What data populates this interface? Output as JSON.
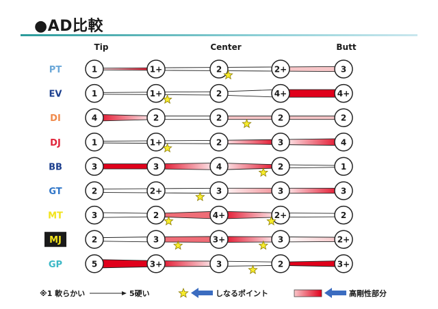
{
  "title": "●AD比較",
  "columns": {
    "tip": "Tip",
    "center": "Center",
    "butt": "Butt"
  },
  "rows": [
    {
      "name": "PT",
      "name_color": "#6aa7d8",
      "badge": false,
      "values": [
        "1",
        "1+",
        "2",
        "2+",
        "3"
      ],
      "stars": [
        2.15
      ],
      "segments": [
        {
          "from": 0,
          "to": 3,
          "style": "fade-dark"
        },
        {
          "from": 3,
          "to": 4,
          "style": "pale"
        }
      ]
    },
    {
      "name": "EV",
      "name_color": "#1c3f8e",
      "badge": false,
      "values": [
        "1",
        "1+",
        "2",
        "4+",
        "4+"
      ],
      "stars": [
        1.18
      ],
      "segments": [
        {
          "from": 3,
          "to": 4,
          "style": "dark"
        }
      ]
    },
    {
      "name": "DI",
      "name_color": "#f08a4b",
      "badge": false,
      "values": [
        "4",
        "2",
        "2",
        "2",
        "2"
      ],
      "stars": [
        2.45
      ],
      "segments": [
        {
          "from": 0,
          "to": 1,
          "style": "dark-fade"
        },
        {
          "from": 1,
          "to": 2,
          "style": "white"
        },
        {
          "from": 2,
          "to": 3,
          "style": "pale"
        },
        {
          "from": 3,
          "to": 4,
          "style": "pale"
        }
      ]
    },
    {
      "name": "DJ",
      "name_color": "#e0243a",
      "badge": false,
      "values": [
        "1",
        "1+",
        "2",
        "3",
        "4"
      ],
      "stars": [
        1.18
      ],
      "segments": [
        {
          "from": 1,
          "to": 2,
          "style": "white"
        },
        {
          "from": 2,
          "to": 3,
          "style": "fade-dark"
        },
        {
          "from": 3,
          "to": 4,
          "style": "fade-dark"
        }
      ]
    },
    {
      "name": "BB",
      "name_color": "#1c3f8e",
      "badge": false,
      "values": [
        "3",
        "3",
        "4",
        "2",
        "1"
      ],
      "stars": [
        2.72
      ],
      "segments": [
        {
          "from": 0,
          "to": 1,
          "style": "dark"
        },
        {
          "from": 1,
          "to": 2,
          "style": "dark-fade"
        },
        {
          "from": 2,
          "to": 3,
          "style": "fade-dark"
        },
        {
          "from": 3,
          "to": 4,
          "style": "white"
        }
      ]
    },
    {
      "name": "GT",
      "name_color": "#2f75c8",
      "badge": false,
      "values": [
        "2",
        "2+",
        "3",
        "3",
        "3"
      ],
      "stars": [
        1.7
      ],
      "segments": [
        {
          "from": 1,
          "to": 2,
          "style": "white"
        },
        {
          "from": 2,
          "to": 3,
          "style": "pale-mid"
        },
        {
          "from": 3,
          "to": 4,
          "style": "fade-dark"
        }
      ]
    },
    {
      "name": "MT",
      "name_color": "#f2e31b",
      "badge": false,
      "values": [
        "3",
        "2",
        "4+",
        "2+",
        "2"
      ],
      "stars": [
        1.2,
        2.85
      ],
      "segments": [
        {
          "from": 1,
          "to": 2,
          "style": "mid"
        },
        {
          "from": 2,
          "to": 3,
          "style": "dark-fade"
        }
      ]
    },
    {
      "name": "MJ",
      "name_color": "#f2e31b",
      "badge": true,
      "badge_color": "#1a1a1a",
      "values": [
        "2",
        "3",
        "3+",
        "3",
        "2+"
      ],
      "stars": [
        1.35,
        2.72
      ],
      "segments": [
        {
          "from": 1,
          "to": 2,
          "style": "mid"
        },
        {
          "from": 2,
          "to": 3,
          "style": "dark-fade"
        },
        {
          "from": 3,
          "to": 4,
          "style": "white-pale"
        }
      ]
    },
    {
      "name": "GP",
      "name_color": "#3cb8c6",
      "badge": false,
      "values": [
        "5",
        "3+",
        "3",
        "2",
        "3+"
      ],
      "stars": [
        2.55
      ],
      "segments": [
        {
          "from": 0,
          "to": 1,
          "style": "dark"
        },
        {
          "from": 1,
          "to": 2,
          "style": "dark-fade"
        },
        {
          "from": 3,
          "to": 4,
          "style": "dark"
        }
      ]
    }
  ],
  "legend": {
    "scale_text": "※1 軟らかい",
    "scale_end": "5硬い",
    "flex_point": "しなるポイント",
    "stiff_part": "高剛性部分"
  },
  "colors": {
    "dark": "#e0001b",
    "pale": "#f7c6c8",
    "star": "#f7ec2c",
    "arrow": "#3b6cc0",
    "line": "#222222"
  }
}
